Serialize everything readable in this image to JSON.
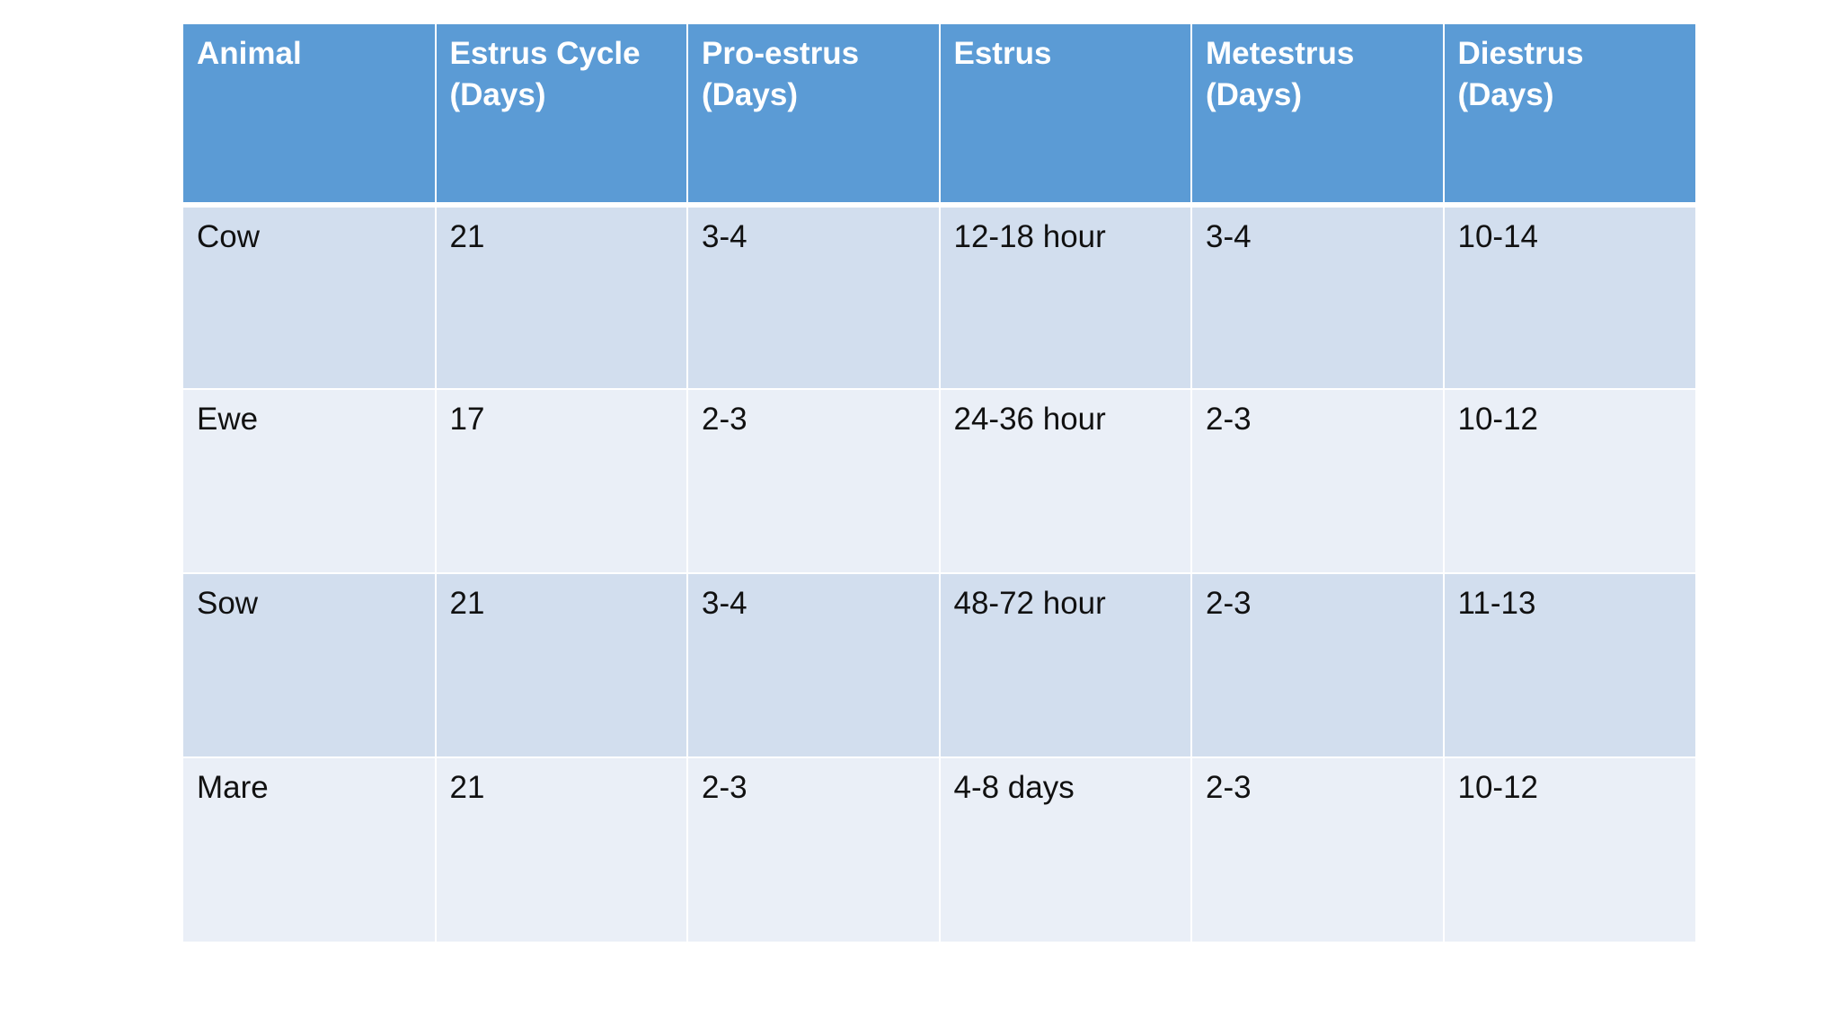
{
  "table": {
    "headers": [
      "Animal",
      "Estrus Cycle (Days)",
      "Pro-estrus (Days)",
      "Estrus",
      "Metestrus (Days)",
      "Diestrus (Days)"
    ],
    "rows": [
      [
        "Cow",
        "21",
        "3-4",
        "12-18 hour",
        "3-4",
        "10-14"
      ],
      [
        "Ewe",
        "17",
        "2-3",
        "24-36 hour",
        "2-3",
        "10-12"
      ],
      [
        "Sow",
        "21",
        "3-4",
        "48-72 hour",
        "2-3",
        "11-13"
      ],
      [
        "Mare",
        "21",
        "2-3",
        "4-8 days",
        "2-3",
        "10-12"
      ]
    ]
  },
  "colors": {
    "header_bg": "#5b9bd5",
    "row_odd_bg": "#d2deee",
    "row_even_bg": "#eaeff7"
  }
}
